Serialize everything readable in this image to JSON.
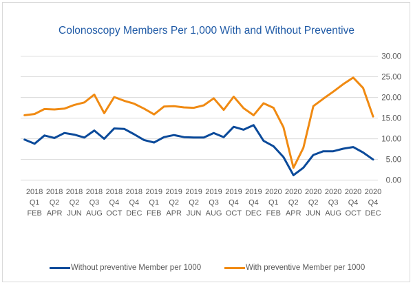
{
  "chart_data": {
    "type": "line",
    "title": "Colonoscopy Members Per 1,000 With and Without Preventive",
    "xlabel": "",
    "ylabel": "",
    "ylim": [
      0,
      30
    ],
    "yticks": [
      "0.00",
      "5.00",
      "10.00",
      "15.00",
      "20.00",
      "25.00",
      "30.00"
    ],
    "ytick_values": [
      0,
      5,
      10,
      15,
      20,
      25,
      30
    ],
    "y_axis_side": "right",
    "grid": true,
    "legend_position": "bottom",
    "x": [
      "2018 JAN",
      "2018 FEB",
      "2018 MAR",
      "2018 APR",
      "2018 MAY",
      "2018 JUN",
      "2018 JUL",
      "2018 AUG",
      "2018 SEP",
      "2018 OCT",
      "2018 NOV",
      "2018 DEC",
      "2019 JAN",
      "2019 FEB",
      "2019 MAR",
      "2019 APR",
      "2019 MAY",
      "2019 JUN",
      "2019 JUL",
      "2019 AUG",
      "2019 SEP",
      "2019 OCT",
      "2019 NOV",
      "2019 DEC",
      "2020 JAN",
      "2020 FEB",
      "2020 MAR",
      "2020 APR",
      "2020 MAY",
      "2020 JUN",
      "2020 JUL",
      "2020 AUG",
      "2020 SEP",
      "2020 OCT",
      "2020 NOV",
      "2020 DEC"
    ],
    "xtick_labels": [
      {
        "index": 1,
        "lines": [
          "2018",
          "Q1",
          "FEB"
        ]
      },
      {
        "index": 3,
        "lines": [
          "2018",
          "Q2",
          "APR"
        ]
      },
      {
        "index": 5,
        "lines": [
          "2018",
          "Q2",
          "JUN"
        ]
      },
      {
        "index": 7,
        "lines": [
          "2018",
          "Q3",
          "AUG"
        ]
      },
      {
        "index": 9,
        "lines": [
          "2018",
          "Q4",
          "OCT"
        ]
      },
      {
        "index": 11,
        "lines": [
          "2018",
          "Q4",
          "DEC"
        ]
      },
      {
        "index": 13,
        "lines": [
          "2019",
          "Q1",
          "FEB"
        ]
      },
      {
        "index": 15,
        "lines": [
          "2019",
          "Q2",
          "APR"
        ]
      },
      {
        "index": 17,
        "lines": [
          "2019",
          "Q2",
          "JUN"
        ]
      },
      {
        "index": 19,
        "lines": [
          "2019",
          "Q3",
          "AUG"
        ]
      },
      {
        "index": 21,
        "lines": [
          "2019",
          "Q4",
          "OCT"
        ]
      },
      {
        "index": 23,
        "lines": [
          "2019",
          "Q4",
          "DEC"
        ]
      },
      {
        "index": 25,
        "lines": [
          "2020",
          "Q1",
          "FEB"
        ]
      },
      {
        "index": 27,
        "lines": [
          "2020",
          "Q2",
          "APR"
        ]
      },
      {
        "index": 29,
        "lines": [
          "2020",
          "Q2",
          "JUN"
        ]
      },
      {
        "index": 31,
        "lines": [
          "2020",
          "Q3",
          "AUG"
        ]
      },
      {
        "index": 33,
        "lines": [
          "2020",
          "Q4",
          "OCT"
        ]
      },
      {
        "index": 35,
        "lines": [
          "2020",
          "Q4",
          "DEC"
        ]
      }
    ],
    "series": [
      {
        "name": "Without preventive Member per 1000",
        "color": "#0b4a9a",
        "values": [
          9.8,
          8.8,
          10.8,
          10.2,
          11.4,
          11.0,
          10.3,
          12.0,
          10.0,
          12.5,
          12.4,
          11.1,
          9.7,
          9.1,
          10.4,
          10.9,
          10.4,
          10.3,
          10.3,
          11.4,
          10.4,
          12.9,
          12.2,
          13.3,
          9.5,
          8.2,
          5.6,
          1.2,
          3.0,
          6.1,
          7.0,
          7.0,
          7.6,
          8.0,
          6.7,
          5.0
        ]
      },
      {
        "name": "With preventive Member per 1000",
        "color": "#f08a12",
        "values": [
          15.7,
          16.0,
          17.2,
          17.1,
          17.3,
          18.2,
          18.8,
          20.7,
          16.2,
          20.1,
          19.2,
          18.5,
          17.3,
          15.9,
          17.8,
          17.9,
          17.6,
          17.5,
          18.1,
          19.8,
          17.0,
          20.2,
          17.4,
          15.7,
          18.6,
          17.5,
          12.8,
          3.0,
          7.8,
          17.9,
          19.7,
          21.4,
          23.2,
          24.8,
          22.3,
          15.4
        ]
      }
    ]
  },
  "legend": [
    {
      "label": "Without preventive Member per 1000",
      "color": "#0b4a9a"
    },
    {
      "label": "With preventive Member per 1000",
      "color": "#f08a12"
    }
  ]
}
